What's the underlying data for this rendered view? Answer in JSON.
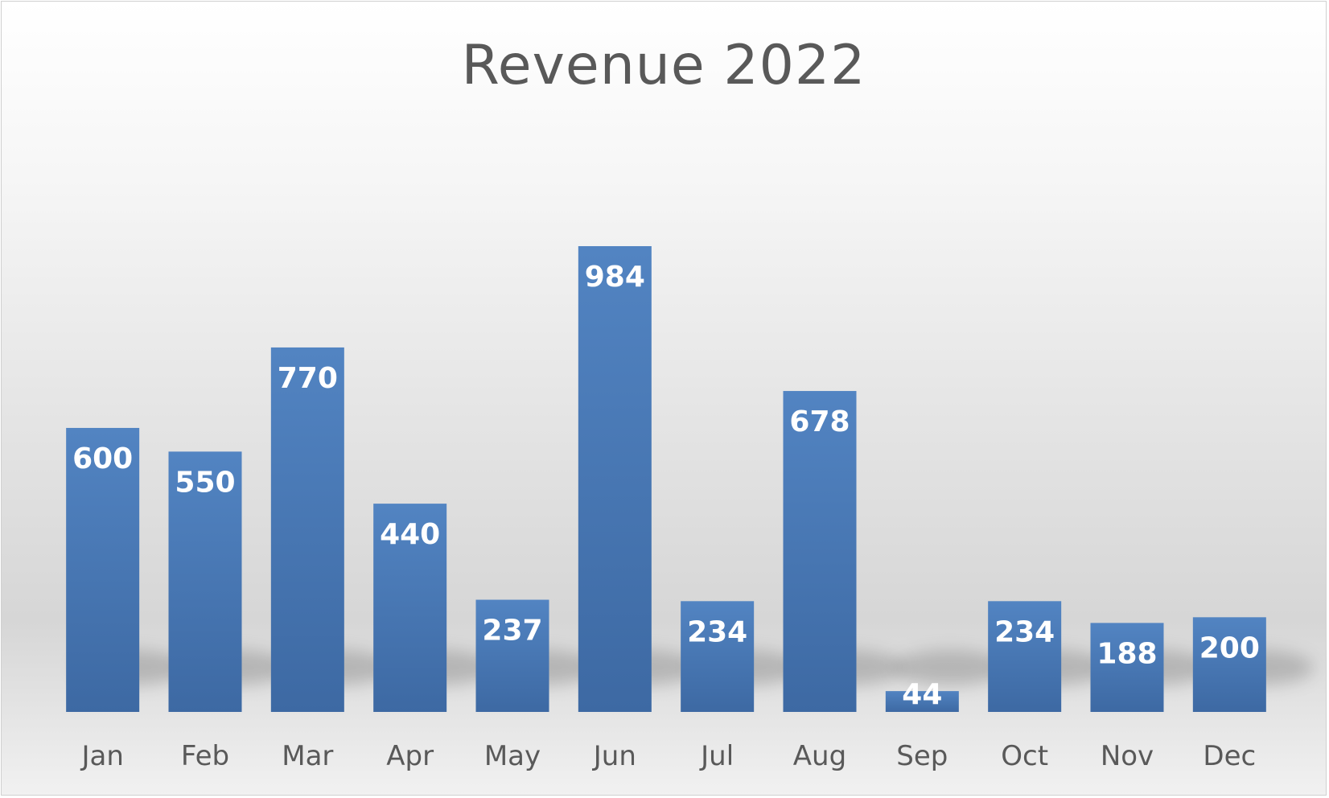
{
  "chart_data": {
    "type": "bar",
    "title": "Revenue 2022",
    "categories": [
      "Jan",
      "Feb",
      "Mar",
      "Apr",
      "May",
      "Jun",
      "Jul",
      "Aug",
      "Sep",
      "Oct",
      "Nov",
      "Dec"
    ],
    "values": [
      600,
      550,
      770,
      440,
      237,
      984,
      234,
      678,
      44,
      234,
      188,
      200
    ],
    "data_labels": [
      "600",
      "550",
      "770",
      "440",
      "237",
      "984",
      "234",
      "678",
      "44",
      "234",
      "188",
      "200"
    ],
    "xlabel": "",
    "ylabel": "",
    "ylim": [
      0,
      1000
    ],
    "grid": false,
    "legend": "none",
    "bar_color": "#4a7ebb",
    "bar_color_dark": "#3d69a3",
    "label_color": "#ffffff",
    "tick_color": "#595959"
  }
}
